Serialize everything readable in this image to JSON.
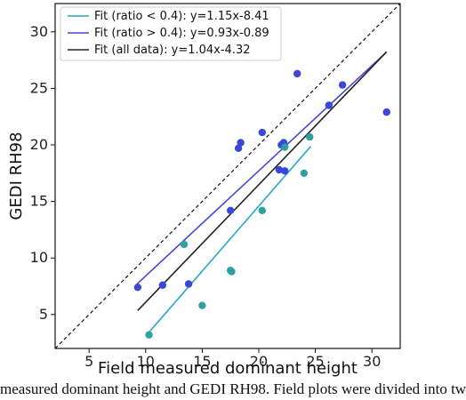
{
  "caption": "measured dominant height and GEDI RH98. Field plots were divided into tw",
  "chart_data": {
    "type": "scatter",
    "xlabel": "Field measured dominant height",
    "ylabel": "GEDI RH98",
    "xlim": [
      2,
      32.5
    ],
    "ylim": [
      2,
      32.5
    ],
    "xticks": [
      5,
      10,
      15,
      20,
      25,
      30
    ],
    "yticks": [
      5,
      10,
      15,
      20,
      25,
      30
    ],
    "grid": false,
    "legend_position": "top-left",
    "one_to_one_line": true,
    "series": [
      {
        "color": "#3a47d8",
        "points": [
          [
            9.3,
            7.4
          ],
          [
            11.5,
            7.6
          ],
          [
            13.8,
            7.7
          ],
          [
            17.5,
            14.2
          ],
          [
            18.2,
            19.7
          ],
          [
            18.4,
            20.2
          ],
          [
            20.3,
            21.1
          ],
          [
            21.8,
            17.8
          ],
          [
            22.0,
            20.0
          ],
          [
            22.2,
            20.2
          ],
          [
            22.3,
            17.7
          ],
          [
            23.4,
            26.3
          ],
          [
            26.2,
            23.5
          ],
          [
            27.4,
            25.3
          ],
          [
            31.3,
            22.9
          ]
        ]
      },
      {
        "color": "#30a0a0",
        "points": [
          [
            10.3,
            3.2
          ],
          [
            13.4,
            11.2
          ],
          [
            15.0,
            5.8
          ],
          [
            17.5,
            8.9
          ],
          [
            17.6,
            8.8
          ],
          [
            20.3,
            14.2
          ],
          [
            22.3,
            19.8
          ],
          [
            24.0,
            17.5
          ],
          [
            24.5,
            20.7
          ]
        ]
      }
    ],
    "fit_lines": [
      {
        "name": "Fit (ratio < 0.4): y=1.15x-8.41",
        "color": "#2aa7d0",
        "slope": 1.15,
        "intercept": -8.41,
        "x_range": [
          10.1,
          24.6
        ]
      },
      {
        "name": "Fit (ratio > 0.4): y=0.93x-0.89",
        "color": "#4a46d6",
        "slope": 0.93,
        "intercept": -0.89,
        "x_range": [
          9.2,
          31.3
        ]
      },
      {
        "name": "Fit (all data): y=1.04x-4.32",
        "color": "#222222",
        "slope": 1.04,
        "intercept": -4.32,
        "x_range": [
          9.3,
          31.3
        ]
      }
    ]
  }
}
